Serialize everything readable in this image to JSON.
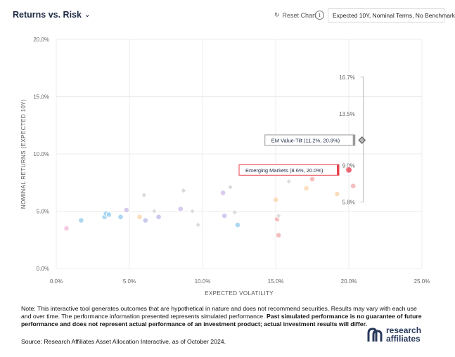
{
  "header": {
    "title": "Returns vs. Risk",
    "reset_label": "Reset Chart",
    "info_label": "i",
    "select_value": "Expected 10Y, Nominal Terms, No Benchmark"
  },
  "icons": {
    "title_chevron": "chevron-down-icon",
    "reset": "reset-icon",
    "info": "info-icon"
  },
  "chart_data": {
    "type": "scatter",
    "xlabel": "EXPECTED VOLATILITY",
    "ylabel": "NOMINAL RETURNS (EXPECTED 10Y)",
    "xlim": [
      0,
      25
    ],
    "ylim": [
      0,
      20
    ],
    "xticks": [
      "0.0%",
      "5.0%",
      "10.0%",
      "15.0%",
      "20.0%",
      "25.0%"
    ],
    "yticks": [
      "0.0%",
      "5.0%",
      "10.0%",
      "15.0%",
      "20.0%"
    ],
    "grid": true,
    "points": [
      {
        "x": 0.7,
        "y": 3.5,
        "color": "#f2b8d8",
        "shape": "circle"
      },
      {
        "x": 1.7,
        "y": 4.2,
        "color": "#8fc9ec",
        "shape": "circle"
      },
      {
        "x": 3.3,
        "y": 4.5,
        "color": "#8fc9ec",
        "shape": "circle"
      },
      {
        "x": 3.4,
        "y": 4.8,
        "color": "#8fc9ec",
        "shape": "circle"
      },
      {
        "x": 3.6,
        "y": 4.7,
        "color": "#8fc9ec",
        "shape": "circle"
      },
      {
        "x": 4.4,
        "y": 4.5,
        "color": "#8fc9ec",
        "shape": "circle"
      },
      {
        "x": 4.8,
        "y": 5.1,
        "color": "#c9b8e8",
        "shape": "circle"
      },
      {
        "x": 5.7,
        "y": 4.5,
        "color": "#f9d3a8",
        "shape": "circle"
      },
      {
        "x": 6.1,
        "y": 4.2,
        "color": "#b8b8e8",
        "shape": "circle"
      },
      {
        "x": 6.0,
        "y": 6.4,
        "color": "#c8c8c8",
        "shape": "diamond"
      },
      {
        "x": 6.7,
        "y": 5.0,
        "color": "#d0d0d0",
        "shape": "diamond"
      },
      {
        "x": 7.0,
        "y": 4.5,
        "color": "#b8b8e8",
        "shape": "circle"
      },
      {
        "x": 8.5,
        "y": 5.2,
        "color": "#c9b8e8",
        "shape": "circle"
      },
      {
        "x": 8.7,
        "y": 6.8,
        "color": "#c8c8c8",
        "shape": "diamond"
      },
      {
        "x": 9.3,
        "y": 5.0,
        "color": "#d0d0d0",
        "shape": "diamond"
      },
      {
        "x": 9.7,
        "y": 3.8,
        "color": "#d0d0d0",
        "shape": "diamond"
      },
      {
        "x": 11.4,
        "y": 6.6,
        "color": "#c9b8e8",
        "shape": "circle"
      },
      {
        "x": 11.5,
        "y": 4.6,
        "color": "#c9b8e8",
        "shape": "circle"
      },
      {
        "x": 11.9,
        "y": 7.1,
        "color": "#c8c8c8",
        "shape": "diamond"
      },
      {
        "x": 12.2,
        "y": 4.9,
        "color": "#d0d0d0",
        "shape": "diamond"
      },
      {
        "x": 12.4,
        "y": 3.8,
        "color": "#8fc9ec",
        "shape": "circle"
      },
      {
        "x": 15.0,
        "y": 6.0,
        "color": "#f9d3a8",
        "shape": "circle"
      },
      {
        "x": 15.1,
        "y": 4.3,
        "color": "#f2a8a8",
        "shape": "circle"
      },
      {
        "x": 15.2,
        "y": 4.6,
        "color": "#d0d0d0",
        "shape": "diamond"
      },
      {
        "x": 15.2,
        "y": 2.9,
        "color": "#f2a8a8",
        "shape": "circle"
      },
      {
        "x": 15.9,
        "y": 7.6,
        "color": "#d0d0d0",
        "shape": "diamond"
      },
      {
        "x": 17.1,
        "y": 7.0,
        "color": "#f9d3a8",
        "shape": "circle"
      },
      {
        "x": 17.5,
        "y": 7.8,
        "color": "#f2a8a8",
        "shape": "circle"
      },
      {
        "x": 19.2,
        "y": 6.5,
        "color": "#f9d3a8",
        "shape": "circle"
      },
      {
        "x": 20.1,
        "y": 8.6,
        "color": "#f2b8d8",
        "shape": "circle"
      },
      {
        "x": 20.3,
        "y": 7.2,
        "color": "#f2a8a8",
        "shape": "circle"
      }
    ],
    "highlight_points": [
      {
        "label": "EM Value-Tilt (11.2%, 20.9%)",
        "x": 20.9,
        "y": 11.2,
        "color": "#9a9a9a",
        "shape": "diamond",
        "tag_style": "gray"
      },
      {
        "label": "Emerging Markets (8.6%, 20.0%)",
        "x": 20.0,
        "y": 8.6,
        "color": "#e8424d",
        "shape": "circle",
        "tag_style": "red"
      }
    ],
    "range_bar": {
      "x": 21.0,
      "labels": [
        "16.7%",
        "13.5%",
        "9.0%",
        "5.8%"
      ],
      "values": [
        16.7,
        13.5,
        9.0,
        5.8
      ]
    }
  },
  "footer": {
    "note_text": "Note: This interactive tool generates outcomes that are hypothetical in nature and does not recommend securities. Results may vary with each use and over time. The performance information presented represents simulated performance. ",
    "note_bold": "Past simulated performance is no guarantee of future performance and does not represent actual performance of an investment product; actual investment results will differ.",
    "source": "Source: Research Affiliates Asset Allocation Interactive, as of October 2024.",
    "logo_line1": "research",
    "logo_line2": "affiliates"
  }
}
